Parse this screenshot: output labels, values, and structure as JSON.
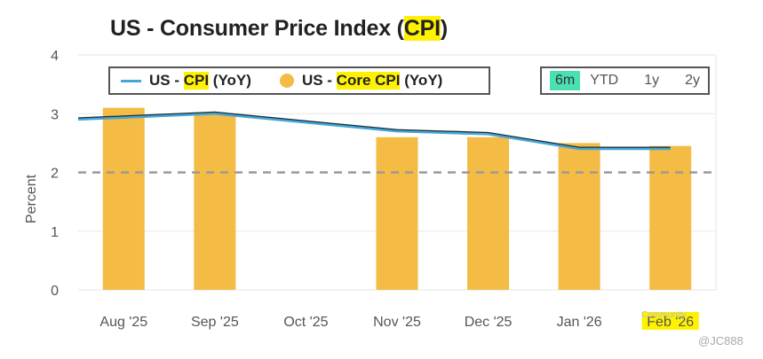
{
  "title": {
    "prefix": "US - Consumer Price Index (",
    "highlight": "CPI",
    "suffix": ")"
  },
  "legend": {
    "line_label_prefix": "US - ",
    "line_label_highlight": "CPI",
    "line_label_suffix": " (YoY)",
    "bar_label_prefix": "US - ",
    "bar_label_highlight": "Core CPI",
    "bar_label_suffix": " (YoY)"
  },
  "range_buttons": [
    {
      "label": "6m",
      "active": true
    },
    {
      "label": "YTD",
      "active": false
    },
    {
      "label": "1y",
      "active": false
    },
    {
      "label": "2y",
      "active": false
    }
  ],
  "watermark": {
    "line1": "Community",
    "line2": "@JC888"
  },
  "colors": {
    "line": "#43a6d6",
    "line_shadow": "#1f2933",
    "bar": "#f4bb45",
    "reference": "#999999",
    "highlight": "#fff200",
    "active_button": "#4ae0b4"
  },
  "chart_data": {
    "type": "bar",
    "categories": [
      "Aug '25",
      "Sep '25",
      "Oct '25",
      "Nov '25",
      "Dec '25",
      "Jan '26",
      "Feb '26"
    ],
    "series": [
      {
        "name": "US - Core CPI (YoY)",
        "type": "bar",
        "values": [
          3.1,
          3.0,
          null,
          2.6,
          2.6,
          2.5,
          2.45
        ]
      },
      {
        "name": "US - CPI (YoY)",
        "type": "line",
        "values": [
          2.9,
          3.0,
          2.85,
          2.7,
          2.65,
          2.4,
          2.4
        ]
      }
    ],
    "ylabel": "Percent",
    "xlabel": "",
    "ylim": [
      0,
      4
    ],
    "yticks": [
      0,
      1,
      2,
      3,
      4
    ],
    "reference_line": 2,
    "highlighted_tick": "Feb '26",
    "grid": true,
    "legend_position": "top"
  }
}
